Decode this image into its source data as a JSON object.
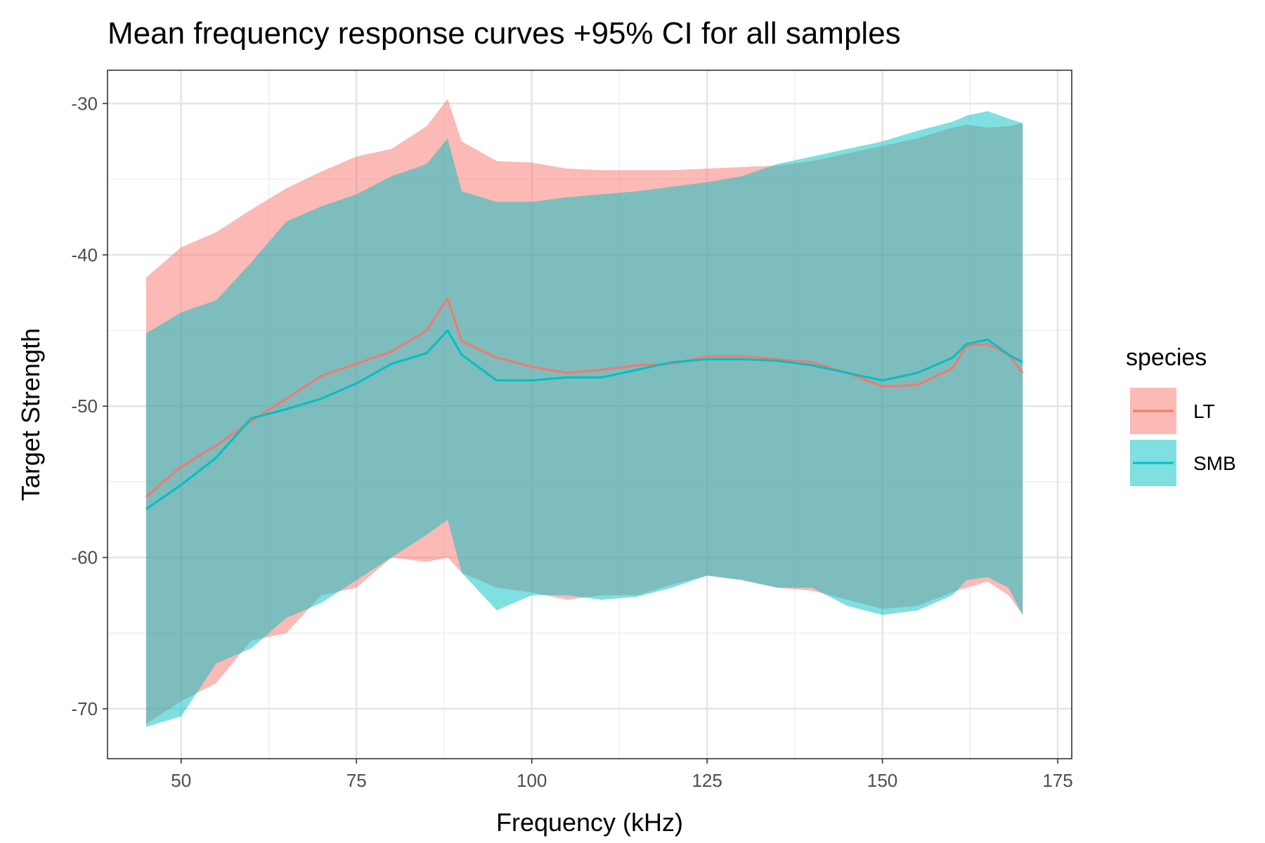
{
  "chart_data": {
    "type": "area",
    "title": "Mean frequency response curves +95% CI for all samples",
    "xlabel": "Frequency (kHz)",
    "ylabel": "Target Strength",
    "xlim": [
      39.5,
      177
    ],
    "ylim": [
      -73.3,
      -27.8
    ],
    "x_ticks": [
      50,
      75,
      100,
      125,
      150,
      175
    ],
    "y_ticks": [
      -30,
      -40,
      -50,
      -60,
      -70
    ],
    "grid": true,
    "legend": {
      "title": "species",
      "position": "right"
    },
    "series": [
      {
        "name": "LT",
        "color": "#F8766D",
        "x": [
          45,
          50,
          55,
          60,
          65,
          70,
          75,
          80,
          85,
          88,
          90,
          95,
          100,
          105,
          110,
          115,
          120,
          125,
          130,
          135,
          140,
          145,
          150,
          155,
          160,
          162,
          165,
          168,
          170
        ],
        "mean": [
          -56.0,
          -54.0,
          -52.6,
          -51.0,
          -49.5,
          -48.0,
          -47.2,
          -46.4,
          -45.0,
          -42.9,
          -45.7,
          -46.8,
          -47.4,
          -47.8,
          -47.6,
          -47.3,
          -47.2,
          -46.7,
          -46.7,
          -46.9,
          -47.1,
          -47.8,
          -48.7,
          -48.6,
          -47.5,
          -46.0,
          -45.9,
          -46.6,
          -47.8
        ],
        "upper": [
          -41.5,
          -39.5,
          -38.5,
          -37.0,
          -35.6,
          -34.5,
          -33.5,
          -33.0,
          -31.5,
          -29.7,
          -32.5,
          -33.8,
          -33.9,
          -34.3,
          -34.4,
          -34.4,
          -34.4,
          -34.3,
          -34.2,
          -34.1,
          -33.8,
          -33.3,
          -32.8,
          -32.3,
          -31.6,
          -31.4,
          -31.6,
          -31.5,
          -31.3
        ],
        "lower": [
          -71.0,
          -69.5,
          -68.3,
          -65.5,
          -65.0,
          -62.5,
          -62.0,
          -60.0,
          -60.3,
          -60.0,
          -61.0,
          -62.0,
          -62.3,
          -62.8,
          -62.5,
          -62.5,
          -61.8,
          -61.2,
          -61.5,
          -62.0,
          -62.2,
          -62.8,
          -63.4,
          -63.2,
          -62.3,
          -62.0,
          -61.6,
          -62.5,
          -63.8
        ]
      },
      {
        "name": "SMB",
        "color": "#00BFC4",
        "x": [
          45,
          50,
          55,
          60,
          65,
          70,
          75,
          80,
          85,
          88,
          90,
          95,
          100,
          105,
          110,
          115,
          120,
          125,
          130,
          135,
          140,
          145,
          150,
          155,
          160,
          162,
          165,
          168,
          170
        ],
        "mean": [
          -56.8,
          -55.2,
          -53.4,
          -50.8,
          -50.2,
          -49.5,
          -48.5,
          -47.2,
          -46.5,
          -45.0,
          -46.6,
          -48.3,
          -48.3,
          -48.1,
          -48.1,
          -47.6,
          -47.1,
          -46.9,
          -46.9,
          -47.0,
          -47.3,
          -47.8,
          -48.3,
          -47.8,
          -46.8,
          -45.9,
          -45.6,
          -46.6,
          -47.1
        ],
        "upper": [
          -45.2,
          -43.8,
          -43.0,
          -40.5,
          -37.8,
          -36.8,
          -36.0,
          -34.8,
          -34.0,
          -32.3,
          -35.8,
          -36.5,
          -36.5,
          -36.2,
          -36.0,
          -35.8,
          -35.5,
          -35.2,
          -34.8,
          -34.0,
          -33.5,
          -33.0,
          -32.5,
          -31.8,
          -31.2,
          -30.8,
          -30.5,
          -31.0,
          -31.3
        ],
        "lower": [
          -71.2,
          -70.5,
          -67.0,
          -66.0,
          -64.0,
          -63.0,
          -61.5,
          -60.0,
          -58.5,
          -57.5,
          -61.0,
          -63.5,
          -62.5,
          -62.5,
          -62.8,
          -62.6,
          -62.0,
          -61.2,
          -61.5,
          -62.0,
          -62.0,
          -63.2,
          -63.8,
          -63.5,
          -62.5,
          -61.5,
          -61.3,
          -62.0,
          -63.8
        ]
      }
    ]
  }
}
